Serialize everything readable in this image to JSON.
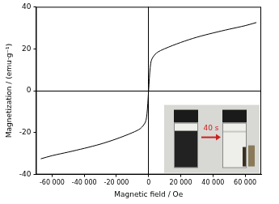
{
  "chart_data": {
    "type": "line",
    "x_label": "Magnetic field / Oe",
    "y_label": "Magnetization / (emu·g⁻¹)",
    "annotations": [
      "40 s"
    ],
    "x": [
      -67000,
      -60000,
      -50000,
      -40000,
      -30000,
      -20000,
      -10000,
      -5000,
      -2000,
      -1000,
      -500,
      0,
      500,
      1000,
      2000,
      5000,
      10000,
      20000,
      30000,
      40000,
      50000,
      60000,
      67000
    ],
    "values": [
      -32.5,
      -31,
      -29.3,
      -27.5,
      -25.5,
      -23,
      -20,
      -18,
      -15,
      -11,
      -6,
      0,
      6,
      11,
      15,
      18,
      20,
      23,
      25.5,
      27.5,
      29.3,
      31,
      32.5
    ],
    "color": "#000000",
    "xlim": [
      -70000,
      70000
    ],
    "xticks": [
      {
        "value": -60000,
        "label": "-60 000"
      },
      {
        "value": -40000,
        "label": "-40 000"
      },
      {
        "value": -20000,
        "label": "-20 000"
      },
      0,
      {
        "value": 20000,
        "label": "20 000"
      },
      {
        "value": 40000,
        "label": "40 000"
      },
      {
        "value": 60000,
        "label": "60 000"
      }
    ],
    "ylim": [
      -40,
      40
    ],
    "yticks": [
      -40,
      -20,
      0,
      20,
      40
    ]
  }
}
